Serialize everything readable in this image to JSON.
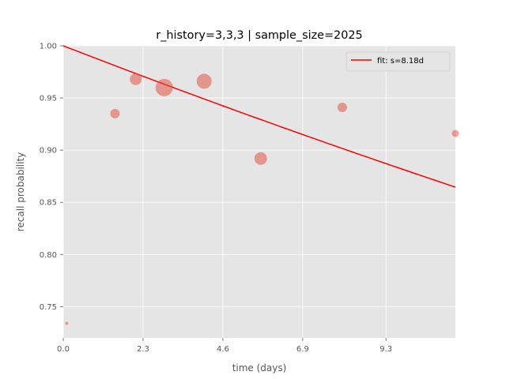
{
  "chart_data": {
    "type": "scatter",
    "title": "r_history=3,3,3 | sample_size=2025",
    "xlabel": "time (days)",
    "ylabel": "recall probability",
    "xlim": [
      0,
      11.3
    ],
    "ylim": [
      0.72,
      1.0
    ],
    "x_ticks": [
      0.0,
      2.3,
      4.6,
      6.9,
      9.3
    ],
    "x_tick_labels": [
      "0.0",
      "2.3",
      "4.6",
      "6.9",
      "9.3"
    ],
    "y_ticks": [
      0.75,
      0.8,
      0.85,
      0.9,
      0.95,
      1.0
    ],
    "y_tick_labels": [
      "0.75",
      "0.80",
      "0.85",
      "0.90",
      "0.95",
      "1.00"
    ],
    "grid": true,
    "legend_position": "top-right",
    "colors": {
      "background": "#e5e5e5",
      "grid": "#ffffff",
      "points": "#e24a33",
      "fit_line": "#ff0000",
      "ticks": "#555555"
    },
    "series": [
      {
        "kind": "scatter",
        "points": [
          {
            "x": 0.1,
            "y": 0.734,
            "size": 2
          },
          {
            "x": 1.49,
            "y": 0.935,
            "size": 6
          },
          {
            "x": 2.09,
            "y": 0.968,
            "size": 7.5
          },
          {
            "x": 2.91,
            "y": 0.96,
            "size": 11
          },
          {
            "x": 4.06,
            "y": 0.966,
            "size": 9.5
          },
          {
            "x": 5.69,
            "y": 0.892,
            "size": 8
          },
          {
            "x": 8.04,
            "y": 0.941,
            "size": 6
          },
          {
            "x": 11.3,
            "y": 0.916,
            "size": 4.5
          }
        ]
      },
      {
        "kind": "line",
        "name": "fit: s=8.18d",
        "function": "pow(0.9, t/s)",
        "stability_days": 8.18
      }
    ]
  }
}
